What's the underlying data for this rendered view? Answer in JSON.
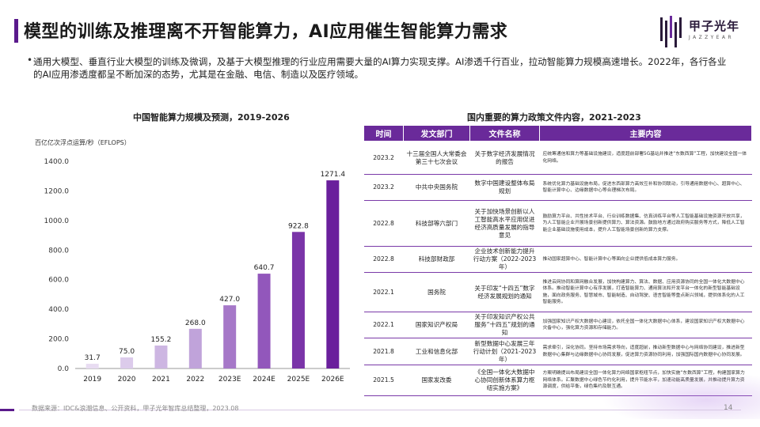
{
  "header": {
    "title": "模型的训练及推理离不开智能算力，AI应用催生智能算力需求",
    "logo_text": "甲子光年",
    "logo_subtext": "JAZZYEAR"
  },
  "bullet": {
    "text": "通用大模型、垂直行业大模型的训练及微调，及基于大模型推理的行业应用需要大量的AI算力实现支撑。AI渗透千行百业，拉动智能算力规模高速增长。2022年，各行各业的AI应用渗透度都呈不断加深的态势，尤其是在金融、电信、制造以及医疗领域。"
  },
  "chart_data": {
    "type": "bar",
    "title": "中国智能算力规模及预测，2019-2026",
    "ylabel": "百亿亿次浮点运算/秒（EFLOPS）",
    "xlabel": "",
    "categories": [
      "2019",
      "2020",
      "2021",
      "2022",
      "2023E",
      "2024E",
      "2025E",
      "2026E"
    ],
    "values": [
      31.7,
      75.0,
      155.2,
      268.0,
      427.0,
      640.7,
      922.8,
      1271.4
    ],
    "value_labels": [
      "31.7",
      "75.0",
      "155.2",
      "268.0",
      "427.0",
      "640.7",
      "922.8",
      "1271.4"
    ],
    "ylim": [
      0,
      1400
    ],
    "yticks": [
      0,
      200,
      400,
      600,
      800,
      1000,
      1200,
      1400
    ],
    "ytick_labels": [
      "0.0",
      "200.0",
      "400.0",
      "600.0",
      "800.0",
      "1000.0",
      "1200.0",
      "1400.0"
    ],
    "grid": false,
    "legend": "none",
    "colors": [
      "#e8dcf2",
      "#dccbeb",
      "#cdb6e2",
      "#c0a3da",
      "#a678c8",
      "#9257bb",
      "#7a34a8",
      "#6a1f9c"
    ]
  },
  "table": {
    "title": "国内重要的算力政策文件内容，2021-2023",
    "headers": [
      "时间",
      "发文部门",
      "文件名称",
      "主要内容"
    ],
    "rows": [
      {
        "date": "2023.2",
        "dept": "十三届全国人大常委会第三十七次会议",
        "doc": "关于数字经济发展情况的报告",
        "content": "应统筹通信和算力等基础设施建设，适度超前部署5G基站并推进“东数西算”工程，加快建设全国一体化网络。"
      },
      {
        "date": "2023.2",
        "dept": "中共中央国务院",
        "doc": "数字中国建设整体布局规划",
        "content": "系统优化算力基础设施布局，促进东西部算力高效互补和协同联动，引导通用数据中心、超算中心、智能计算中心、边缘数据中心等合理梯次布局。"
      },
      {
        "date": "2022.8",
        "dept": "科技部等六部门",
        "doc": "关于加快场景创新以人工智能高水平应用促进经济高质量发展的指导意见",
        "content": "鼓励算力平台、共性技术平台、行业训练数据集、仿真训练平台等人工智能基础设施资源开放共享，为人工智能企业开展场景创新提供算力、算法资源。鼓励地方通过政府购买服务等方式，降低人工智能企业基础设施使用成本，提升人工智能场景创新的算力支撑。"
      },
      {
        "date": "2022.8",
        "dept": "科技部财政部",
        "doc": "企业技术创新能力提升行动方案（2022-2023年）",
        "content": "推动国家超算中心、智能计算中心等面向企业提供低成本算力服务。"
      },
      {
        "date": "2022.1",
        "dept": "国务院",
        "doc": "关于印发“十四五”数字经济发展规划的通知",
        "content": "推进云网协同和算网融合发展，加快构建算力、算法、数据、应用资源协同的全国一体化大数据中心体系。推动智能计算中心有序发展，打造智能算力、通用算法和开发平台一体化的新型智能基础设施，面向政务服务、智慧城市、智能制造、自动驾驶、语言智能等重点新兴领域，提供体系化的人工智能服务。"
      },
      {
        "date": "2022.1",
        "dept": "国家知识产权局",
        "doc": "关于印发知识产权公共服务“十四五”规划的通知",
        "content": "加强国家知识产权大数据中心建设，依托全国一体化大数据中心体系，建设国家知识产权大数据中心灾备中心，强化算力资源和存储能力。"
      },
      {
        "date": "2021.8",
        "dept": "工业和信息化部",
        "doc": "新型数据中心发展三年行动计划（2021-2023年）",
        "content": "需求牵引，深化协同。坚持市场需求导向，适度超前，推动新型数据中心与网络协同建设，推进新型数据中心集群与边缘数据中心协同发展，促进算力资源协同利用，加强国际国内数据中心协同发展。"
      },
      {
        "date": "2021.5",
        "dept": "国家发改委",
        "doc": "《全国一体化大数据中心协同创新体系算力枢纽实施方案》",
        "content": "方案明确提出布局建设全国一体化算力网络国家枢纽节点，加快实施“东数西算”工程，构建国家算力网络体系。汇聚数据中心绿色节约化利用，提升节能水平，加速动能高质量发展，并推动提升算力资源调度，供给平衡，绿色集约及联互通。"
      }
    ]
  },
  "footer": {
    "source": "数据来源：IDC&浪潮信息、公开资料，甲子光年智库总结整理，2023.08",
    "page": "14"
  }
}
